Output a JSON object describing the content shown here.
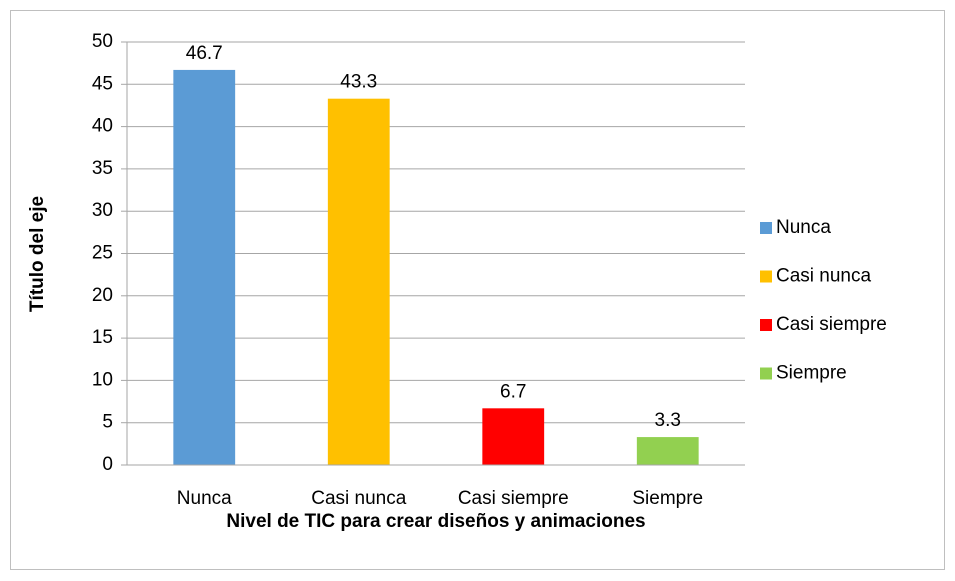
{
  "chart_data": {
    "type": "bar",
    "categories": [
      "Nunca",
      "Casi nunca",
      "Casi siempre",
      "Siempre"
    ],
    "values": [
      46.7,
      43.3,
      6.7,
      3.3
    ],
    "colors": [
      "#5b9bd5",
      "#ffc000",
      "#ff0000",
      "#92d050"
    ],
    "ylim": [
      0,
      50
    ],
    "yticks": [
      0,
      5,
      10,
      15,
      20,
      25,
      30,
      35,
      40,
      45,
      50
    ],
    "grid": true,
    "legend": "right",
    "xlabel": "Nivel de TIC para crear diseños y animaciones",
    "ylabel": "Título del eje"
  }
}
